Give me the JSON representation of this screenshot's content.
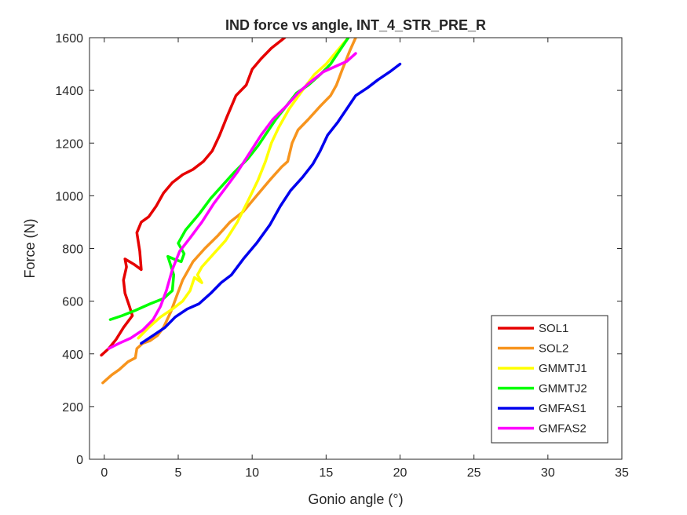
{
  "chart_data": {
    "type": "line",
    "title": "IND force vs angle, INT_4_STR_PRE_R",
    "xlabel": "Gonio angle (°)",
    "ylabel": "Force (N)",
    "xlim": [
      -1,
      35
    ],
    "ylim": [
      0,
      1600
    ],
    "xticks": [
      0,
      5,
      10,
      15,
      20,
      25,
      30,
      35
    ],
    "yticks": [
      0,
      200,
      400,
      600,
      800,
      1000,
      1200,
      1400,
      1600
    ],
    "xtick_labels": [
      "0",
      "5",
      "10",
      "15",
      "20",
      "25",
      "30",
      "35"
    ],
    "ytick_labels": [
      "0",
      "200",
      "400",
      "600",
      "800",
      "1000",
      "1200",
      "1400",
      "1600"
    ],
    "grid": false,
    "legend_position": "bottom-right",
    "series": [
      {
        "name": "SOL1",
        "color": "#e60000",
        "points": [
          [
            -0.2,
            395
          ],
          [
            0.3,
            420
          ],
          [
            0.8,
            455
          ],
          [
            1.3,
            500
          ],
          [
            1.9,
            545
          ],
          [
            1.7,
            580
          ],
          [
            1.4,
            630
          ],
          [
            1.3,
            680
          ],
          [
            1.5,
            730
          ],
          [
            1.4,
            760
          ],
          [
            2.0,
            740
          ],
          [
            2.5,
            720
          ],
          [
            2.4,
            790
          ],
          [
            2.2,
            860
          ],
          [
            2.5,
            900
          ],
          [
            3.0,
            920
          ],
          [
            3.5,
            960
          ],
          [
            4.0,
            1010
          ],
          [
            4.6,
            1050
          ],
          [
            5.3,
            1080
          ],
          [
            6.0,
            1100
          ],
          [
            6.7,
            1130
          ],
          [
            7.3,
            1170
          ],
          [
            7.8,
            1230
          ],
          [
            8.3,
            1300
          ],
          [
            8.9,
            1380
          ],
          [
            9.6,
            1420
          ],
          [
            10.0,
            1480
          ],
          [
            10.6,
            1520
          ],
          [
            11.3,
            1560
          ],
          [
            12.2,
            1600
          ]
        ]
      },
      {
        "name": "SOL2",
        "color": "#f7941d",
        "points": [
          [
            -0.1,
            290
          ],
          [
            0.5,
            320
          ],
          [
            1.0,
            340
          ],
          [
            1.6,
            370
          ],
          [
            2.1,
            385
          ],
          [
            2.2,
            420
          ],
          [
            2.6,
            440
          ],
          [
            3.1,
            450
          ],
          [
            3.6,
            470
          ],
          [
            4.0,
            500
          ],
          [
            4.5,
            560
          ],
          [
            4.9,
            620
          ],
          [
            5.3,
            680
          ],
          [
            6.0,
            750
          ],
          [
            6.8,
            800
          ],
          [
            7.7,
            850
          ],
          [
            8.5,
            900
          ],
          [
            9.4,
            940
          ],
          [
            10.3,
            1000
          ],
          [
            11.2,
            1060
          ],
          [
            12.0,
            1110
          ],
          [
            12.4,
            1130
          ],
          [
            12.7,
            1200
          ],
          [
            13.1,
            1250
          ],
          [
            13.8,
            1290
          ],
          [
            14.6,
            1340
          ],
          [
            15.3,
            1380
          ],
          [
            15.7,
            1420
          ],
          [
            16.1,
            1480
          ],
          [
            16.6,
            1550
          ],
          [
            17.0,
            1600
          ]
        ]
      },
      {
        "name": "GMMTJ1",
        "color": "#ffff00",
        "points": [
          [
            2.3,
            460
          ],
          [
            3.0,
            500
          ],
          [
            3.8,
            540
          ],
          [
            4.6,
            570
          ],
          [
            5.3,
            600
          ],
          [
            5.8,
            640
          ],
          [
            6.1,
            690
          ],
          [
            6.6,
            670
          ],
          [
            6.3,
            700
          ],
          [
            6.6,
            730
          ],
          [
            7.4,
            780
          ],
          [
            8.2,
            830
          ],
          [
            9.0,
            900
          ],
          [
            9.8,
            990
          ],
          [
            10.4,
            1060
          ],
          [
            10.9,
            1130
          ],
          [
            11.3,
            1200
          ],
          [
            11.8,
            1260
          ],
          [
            12.5,
            1330
          ],
          [
            13.4,
            1400
          ],
          [
            14.2,
            1460
          ],
          [
            15.0,
            1500
          ],
          [
            15.6,
            1540
          ],
          [
            16.2,
            1580
          ],
          [
            16.5,
            1600
          ]
        ]
      },
      {
        "name": "GMMTJ2",
        "color": "#00ff00",
        "points": [
          [
            0.4,
            530
          ],
          [
            1.2,
            545
          ],
          [
            2.1,
            565
          ],
          [
            3.1,
            590
          ],
          [
            4.0,
            610
          ],
          [
            4.6,
            640
          ],
          [
            4.7,
            700
          ],
          [
            4.3,
            770
          ],
          [
            4.7,
            760
          ],
          [
            5.2,
            750
          ],
          [
            5.4,
            780
          ],
          [
            5.0,
            820
          ],
          [
            5.5,
            870
          ],
          [
            6.4,
            930
          ],
          [
            7.2,
            990
          ],
          [
            8.0,
            1040
          ],
          [
            8.8,
            1090
          ],
          [
            9.7,
            1140
          ],
          [
            10.4,
            1190
          ],
          [
            11.0,
            1240
          ],
          [
            11.6,
            1290
          ],
          [
            12.3,
            1340
          ],
          [
            13.0,
            1390
          ],
          [
            13.8,
            1420
          ],
          [
            14.6,
            1460
          ],
          [
            15.3,
            1500
          ],
          [
            15.9,
            1550
          ],
          [
            16.5,
            1600
          ]
        ]
      },
      {
        "name": "GMFAS1",
        "color": "#0000ee",
        "points": [
          [
            2.5,
            440
          ],
          [
            3.3,
            470
          ],
          [
            4.1,
            500
          ],
          [
            4.8,
            540
          ],
          [
            5.6,
            570
          ],
          [
            6.4,
            590
          ],
          [
            7.2,
            630
          ],
          [
            7.9,
            670
          ],
          [
            8.6,
            700
          ],
          [
            9.4,
            760
          ],
          [
            10.3,
            820
          ],
          [
            11.2,
            890
          ],
          [
            11.9,
            960
          ],
          [
            12.6,
            1020
          ],
          [
            13.4,
            1070
          ],
          [
            14.1,
            1120
          ],
          [
            14.6,
            1170
          ],
          [
            15.1,
            1230
          ],
          [
            15.8,
            1280
          ],
          [
            16.4,
            1330
          ],
          [
            17.0,
            1380
          ],
          [
            17.8,
            1410
          ],
          [
            18.5,
            1440
          ],
          [
            19.3,
            1470
          ],
          [
            20.0,
            1500
          ]
        ]
      },
      {
        "name": "GMFAS2",
        "color": "#ff00ff",
        "points": [
          [
            0.3,
            420
          ],
          [
            1.0,
            440
          ],
          [
            1.8,
            460
          ],
          [
            2.6,
            490
          ],
          [
            3.3,
            530
          ],
          [
            3.8,
            580
          ],
          [
            4.2,
            640
          ],
          [
            4.6,
            720
          ],
          [
            5.1,
            790
          ],
          [
            5.8,
            840
          ],
          [
            6.6,
            900
          ],
          [
            7.4,
            970
          ],
          [
            8.2,
            1030
          ],
          [
            9.0,
            1090
          ],
          [
            9.8,
            1160
          ],
          [
            10.6,
            1230
          ],
          [
            11.4,
            1290
          ],
          [
            12.3,
            1340
          ],
          [
            13.1,
            1390
          ],
          [
            13.9,
            1430
          ],
          [
            14.8,
            1470
          ],
          [
            15.6,
            1490
          ],
          [
            16.4,
            1510
          ],
          [
            17.0,
            1540
          ]
        ]
      }
    ]
  }
}
